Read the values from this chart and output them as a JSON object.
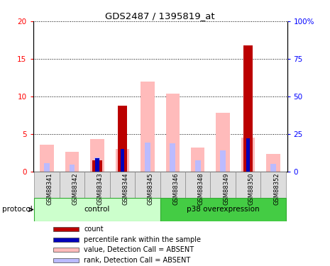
{
  "title": "GDS2487 / 1395819_at",
  "samples": [
    "GSM88341",
    "GSM88342",
    "GSM88343",
    "GSM88344",
    "GSM88345",
    "GSM88346",
    "GSM88348",
    "GSM88349",
    "GSM88350",
    "GSM88352"
  ],
  "groups": [
    {
      "name": "control",
      "indices": [
        0,
        1,
        2,
        3,
        4
      ],
      "color": "#ccffcc"
    },
    {
      "name": "p38 overexpression",
      "indices": [
        5,
        6,
        7,
        8,
        9
      ],
      "color": "#44cc44"
    }
  ],
  "pink_value": [
    3.6,
    2.6,
    4.3,
    3.0,
    12.0,
    10.4,
    3.2,
    7.8,
    4.5,
    2.3
  ],
  "lightblue_rank": [
    1.1,
    0.9,
    1.9,
    0.0,
    3.9,
    3.8,
    1.5,
    2.8,
    0.0,
    1.0
  ],
  "darkred_count": [
    0.0,
    0.0,
    1.5,
    8.8,
    0.0,
    0.0,
    0.0,
    0.0,
    16.8,
    0.0
  ],
  "blue_percentile": [
    0.0,
    0.0,
    1.8,
    3.0,
    0.0,
    0.0,
    0.0,
    0.0,
    4.4,
    0.0
  ],
  "ylim_left": [
    0,
    20
  ],
  "ylim_right": [
    0,
    100
  ],
  "yticks_left": [
    0,
    5,
    10,
    15,
    20
  ],
  "yticks_right": [
    0,
    25,
    50,
    75,
    100
  ],
  "ytick_right_labels": [
    "0",
    "25",
    "50",
    "75",
    "100%"
  ],
  "pink_color": "#ffbbbb",
  "lightblue_color": "#bbbbff",
  "darkred_color": "#bb0000",
  "blue_color": "#0000bb",
  "protocol_label": "protocol",
  "legend_items": [
    {
      "label": "count",
      "color": "#bb0000"
    },
    {
      "label": "percentile rank within the sample",
      "color": "#0000bb"
    },
    {
      "label": "value, Detection Call = ABSENT",
      "color": "#ffbbbb"
    },
    {
      "label": "rank, Detection Call = ABSENT",
      "color": "#bbbbff"
    }
  ],
  "grid_yticks": [
    5,
    10,
    15,
    20
  ]
}
